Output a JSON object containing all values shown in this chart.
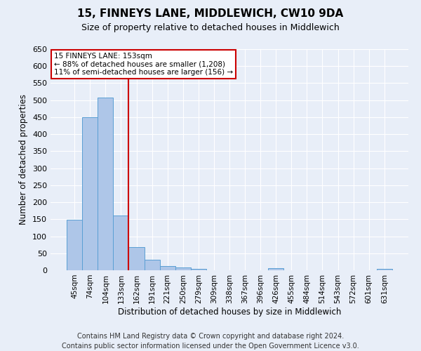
{
  "title": "15, FINNEYS LANE, MIDDLEWICH, CW10 9DA",
  "subtitle": "Size of property relative to detached houses in Middlewich",
  "xlabel": "Distribution of detached houses by size in Middlewich",
  "ylabel": "Number of detached properties",
  "categories": [
    "45sqm",
    "74sqm",
    "104sqm",
    "133sqm",
    "162sqm",
    "191sqm",
    "221sqm",
    "250sqm",
    "279sqm",
    "309sqm",
    "338sqm",
    "367sqm",
    "396sqm",
    "426sqm",
    "455sqm",
    "484sqm",
    "514sqm",
    "543sqm",
    "572sqm",
    "601sqm",
    "631sqm"
  ],
  "values": [
    148,
    450,
    507,
    160,
    68,
    30,
    13,
    8,
    4,
    0,
    0,
    0,
    0,
    6,
    0,
    0,
    0,
    0,
    0,
    0,
    5
  ],
  "bar_color": "#aec6e8",
  "bar_edge_color": "#5a9fd4",
  "vline_x_index": 4,
  "vline_color": "#cc0000",
  "annotation_text": "15 FINNEYS LANE: 153sqm\n← 88% of detached houses are smaller (1,208)\n11% of semi-detached houses are larger (156) →",
  "annotation_box_color": "#ffffff",
  "annotation_box_edge_color": "#cc0000",
  "ylim": [
    0,
    650
  ],
  "yticks": [
    0,
    50,
    100,
    150,
    200,
    250,
    300,
    350,
    400,
    450,
    500,
    550,
    600,
    650
  ],
  "background_color": "#e8eef8",
  "plot_background": "#e8eef8",
  "grid_color": "#ffffff",
  "footer": "Contains HM Land Registry data © Crown copyright and database right 2024.\nContains public sector information licensed under the Open Government Licence v3.0.",
  "title_fontsize": 11,
  "subtitle_fontsize": 9,
  "xlabel_fontsize": 8.5,
  "ylabel_fontsize": 8.5,
  "footer_fontsize": 7
}
